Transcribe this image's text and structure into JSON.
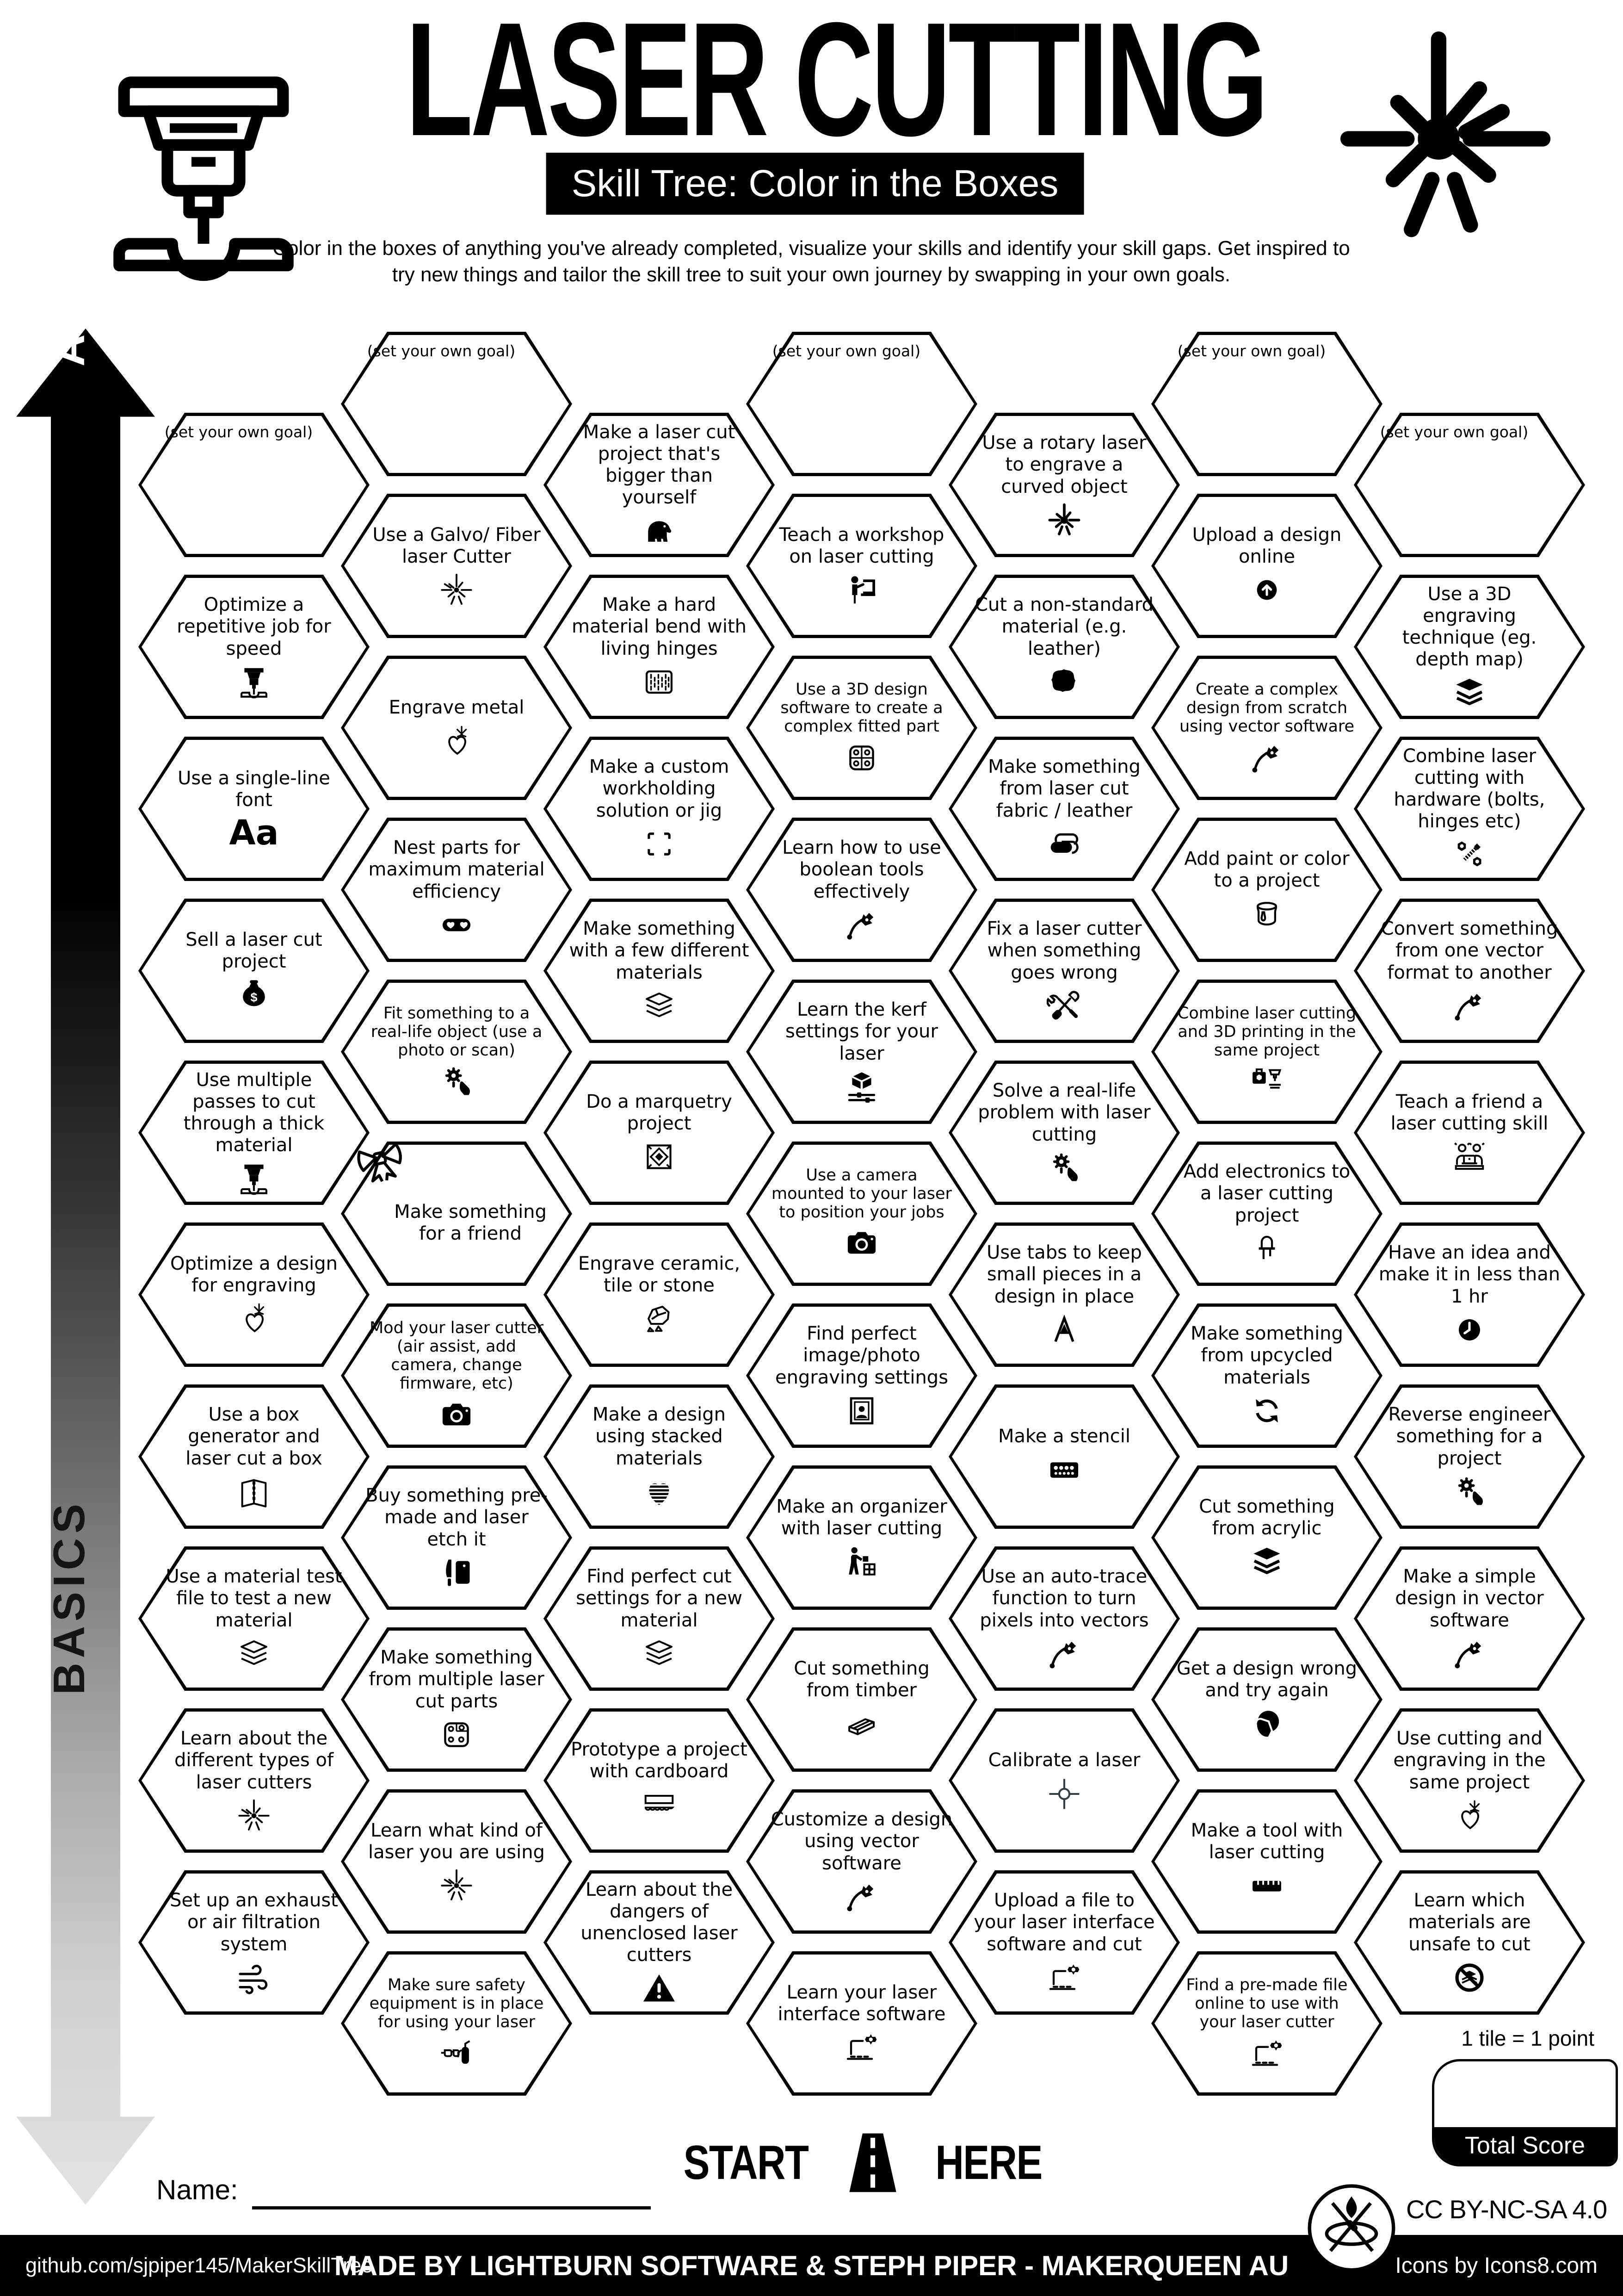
{
  "header": {
    "title": "LASER CUTTING",
    "subtitle": "Skill Tree: Color in the Boxes",
    "tagline": "Color in the boxes of anything you've already completed, visualize your skills and identify your skill gaps.  Get inspired to try new things and tailor the skill tree to suit your own journey by swapping in your own goals.",
    "decor_left_icon": "laser-cutter-machine-icon",
    "decor_right_icon": "laser-beam-starburst-icon"
  },
  "axis": {
    "top_label": "ADVANCED",
    "bottom_label": "BASICS"
  },
  "start_here": {
    "start": "START",
    "here": "HERE",
    "icon": "road-icon"
  },
  "name_label": "Name:",
  "score": {
    "note": "1 tile = 1 point",
    "box_label": "Total Score"
  },
  "license_label": "CC BY-NC-SA 4.0",
  "footer": {
    "left": "github.com/sjpiper145/MakerSkillTree",
    "center": "MADE BY LIGHTBURN SOFTWARE & STEPH PIPER  -  MAKERQUEEN AU",
    "right": "Icons by Icons8.com"
  },
  "grid": {
    "columns": [
      {
        "tiles": [
          {
            "label": "(set your own goal)",
            "goal": true,
            "icon": null
          },
          {
            "label": "Optimize a repetitive job for speed",
            "icon": "laser-head"
          },
          {
            "label": "Use a single-line font",
            "icon": "font-sample",
            "icon_text": "Aa"
          },
          {
            "label": "Sell a laser cut project",
            "icon": "money-bag"
          },
          {
            "label": "Use multiple passes to cut through a thick material",
            "icon": "laser-head"
          },
          {
            "label": "Optimize a design for engraving",
            "icon": "heart-spark"
          },
          {
            "label": "Use a box generator and laser cut a box",
            "icon": "box-fingerjoint"
          },
          {
            "label": "Use a material test file to test a new material",
            "icon": "layers-outline"
          },
          {
            "label": "Learn about the different types of laser cutters",
            "icon": "starburst-outline"
          },
          {
            "label": "Set up an exhaust or air filtration system",
            "icon": "air-flow"
          }
        ]
      },
      {
        "tiles": [
          {
            "label": "(set your own goal)",
            "goal": true,
            "icon": null
          },
          {
            "label": "Use a Galvo/ Fiber laser Cutter",
            "icon": "starburst-outline"
          },
          {
            "label": "Engrave metal",
            "icon": "heart-spark"
          },
          {
            "label": "Nest parts for maximum material efficiency",
            "icon": "nest-pill"
          },
          {
            "label": "Fit something to a real-life object (use a photo or scan)",
            "icon": "gear-hand"
          },
          {
            "label": "Make something for a friend",
            "icon": "bow"
          },
          {
            "label": "Mod your laser cutter (air assist, add camera, change firmware, etc)",
            "icon": "camera"
          },
          {
            "label": "Buy something pre-made and laser etch it",
            "icon": "knife-board"
          },
          {
            "label": "Make something from multiple laser cut parts",
            "icon": "parts-box"
          },
          {
            "label": "Learn what kind of laser you are using",
            "icon": "starburst-outline"
          },
          {
            "label": "Make sure safety equipment is in place for using your laser",
            "icon": "safety-gear"
          }
        ]
      },
      {
        "tiles": [
          {
            "label": "Make a laser cut project  that's bigger than yourself",
            "icon": "elephant"
          },
          {
            "label": "Make a hard material bend with living hinges",
            "icon": "living-hinge"
          },
          {
            "label": "Make a custom workholding solution or jig",
            "icon": "crop-frame"
          },
          {
            "label": "Make something with a few different materials",
            "icon": "layers-outline"
          },
          {
            "label": "Do a marquetry project",
            "icon": "marquetry"
          },
          {
            "label": "Engrave ceramic, tile or stone",
            "icon": "stone"
          },
          {
            "label": "Make a design using stacked materials",
            "icon": "stacked-heart"
          },
          {
            "label": "Find perfect cut settings for a new material",
            "icon": "layers-outline"
          },
          {
            "label": "Prototype a project with cardboard",
            "icon": "cardboard"
          },
          {
            "label": "Learn about the dangers of unenclosed laser cutters",
            "icon": "warning"
          }
        ]
      },
      {
        "tiles": [
          {
            "label": "(set your own goal)",
            "goal": true,
            "icon": null
          },
          {
            "label": "Teach a workshop on laser cutting",
            "icon": "person-teaching"
          },
          {
            "label": "Use a 3D design software to create a complex fitted part",
            "icon": "fitted-part"
          },
          {
            "label": "Learn how to use boolean tools effectively",
            "icon": "pen-tool"
          },
          {
            "label": "Learn the kerf settings for your laser",
            "icon": "cube-sliders"
          },
          {
            "label": "Use a camera mounted to your laser to position your jobs",
            "icon": "camera"
          },
          {
            "label": "Find perfect image/photo engraving settings",
            "icon": "photo-frame"
          },
          {
            "label": "Make an organizer with laser cutting",
            "icon": "organizer"
          },
          {
            "label": "Cut something from timber",
            "icon": "timber"
          },
          {
            "label": "Customize a design using vector software",
            "icon": "pen-tool"
          },
          {
            "label": "Learn your laser interface software",
            "icon": "laptop-gear"
          }
        ]
      },
      {
        "tiles": [
          {
            "label": "Use a rotary laser to engrave a curved object",
            "icon": "starburst-solid"
          },
          {
            "label": "Cut a non-standard material (e.g. leather)",
            "icon": "leather-hide"
          },
          {
            "label": "Make something from laser cut fabric / leather",
            "icon": "fabric"
          },
          {
            "label": "Fix a laser cutter when something goes wrong",
            "icon": "tools-crossed"
          },
          {
            "label": "Solve a real-life problem with laser cutting",
            "icon": "gear-hand"
          },
          {
            "label": "Use tabs to keep small pieces in a design in place",
            "icon": "letter-a-tabs"
          },
          {
            "label": "Make a stencil",
            "icon": "stencil"
          },
          {
            "label": "Use an auto-trace function to turn pixels into vectors",
            "icon": "pen-tool"
          },
          {
            "label": "Calibrate a laser",
            "icon": "crosshair"
          },
          {
            "label": "Upload a file to your laser interface software and cut",
            "icon": "laptop-gear"
          }
        ]
      },
      {
        "tiles": [
          {
            "label": "(set your own goal)",
            "goal": true,
            "icon": null
          },
          {
            "label": "Upload a design online",
            "icon": "upload-circle"
          },
          {
            "label": "Create a complex design from scratch using vector software",
            "icon": "pen-tool"
          },
          {
            "label": "Add paint or color to a project",
            "icon": "paint-bucket"
          },
          {
            "label": "Combine laser cutting and 3D printing in the same project",
            "icon": "print-3d"
          },
          {
            "label": "Add electronics to a laser cutting project",
            "icon": "led"
          },
          {
            "label": "Make something from upcycled materials",
            "icon": "recycle"
          },
          {
            "label": "Cut something from acrylic",
            "icon": "layers-solid"
          },
          {
            "label": "Get a design wrong and try again",
            "icon": "facepalm"
          },
          {
            "label": "Make a tool with laser cutting",
            "icon": "ruler"
          },
          {
            "label": "Find a pre-made file online to use with your laser cutter",
            "icon": "laptop-gear"
          }
        ]
      },
      {
        "tiles": [
          {
            "label": "(set your own goal)",
            "goal": true,
            "icon": null
          },
          {
            "label": "Use a 3D engraving technique (eg. depth map)",
            "icon": "layers-solid"
          },
          {
            "label": "Combine laser cutting with hardware (bolts, hinges etc)",
            "icon": "nut-bolt"
          },
          {
            "label": "Convert something from one vector format to another",
            "icon": "pen-tool"
          },
          {
            "label": "Teach a friend a laser cutting skill",
            "icon": "people-laptop"
          },
          {
            "label": "Have an idea and make it in less than 1 hr",
            "icon": "clock"
          },
          {
            "label": "Reverse engineer something for a project",
            "icon": "gear-hand"
          },
          {
            "label": "Make a simple design in vector software",
            "icon": "pen-tool"
          },
          {
            "label": "Use cutting and engraving in the same project",
            "icon": "heart-spark"
          },
          {
            "label": "Learn which materials are unsafe to cut",
            "icon": "no-cut"
          }
        ]
      }
    ]
  }
}
